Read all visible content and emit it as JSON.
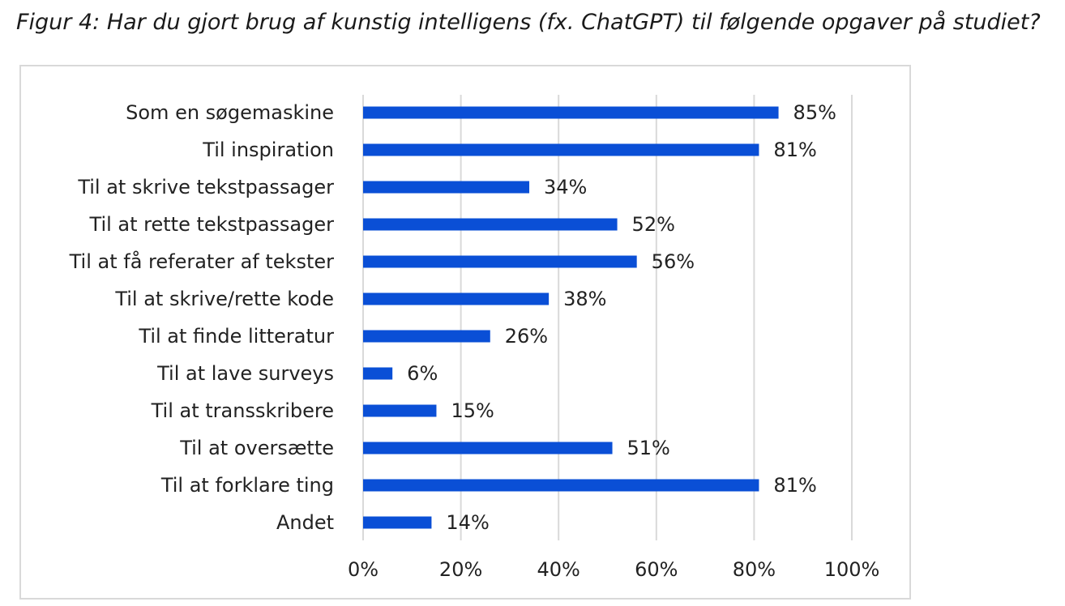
{
  "figure": {
    "caption": "Figur 4: Har du gjort brug af kunstig intelligens (fx. ChatGPT) til følgende opgaver på studiet?"
  },
  "chart_data": {
    "type": "bar",
    "orientation": "horizontal",
    "categories": [
      "Som en søgemaskine",
      "Til inspiration",
      "Til at skrive tekstpassager",
      "Til at rette tekstpassager",
      "Til at få referater af tekster",
      "Til at skrive/rette kode",
      "Til at finde litteratur",
      "Til at lave surveys",
      "Til at transskribere",
      "Til at oversætte",
      "Til at forklare ting",
      "Andet"
    ],
    "values": [
      85,
      81,
      34,
      52,
      56,
      38,
      26,
      6,
      15,
      51,
      81,
      14
    ],
    "value_labels": [
      "85%",
      "81%",
      "34%",
      "52%",
      "56%",
      "38%",
      "26%",
      "6%",
      "15%",
      "51%",
      "81%",
      "14%"
    ],
    "x_ticks": [
      "0%",
      "20%",
      "40%",
      "60%",
      "80%",
      "100%"
    ],
    "xlim": [
      0,
      100
    ],
    "grid": "vertical",
    "legend": "none",
    "colors": {
      "bar": "#0a4fd6",
      "grid": "#d9d9d9",
      "text": "#222222"
    }
  }
}
